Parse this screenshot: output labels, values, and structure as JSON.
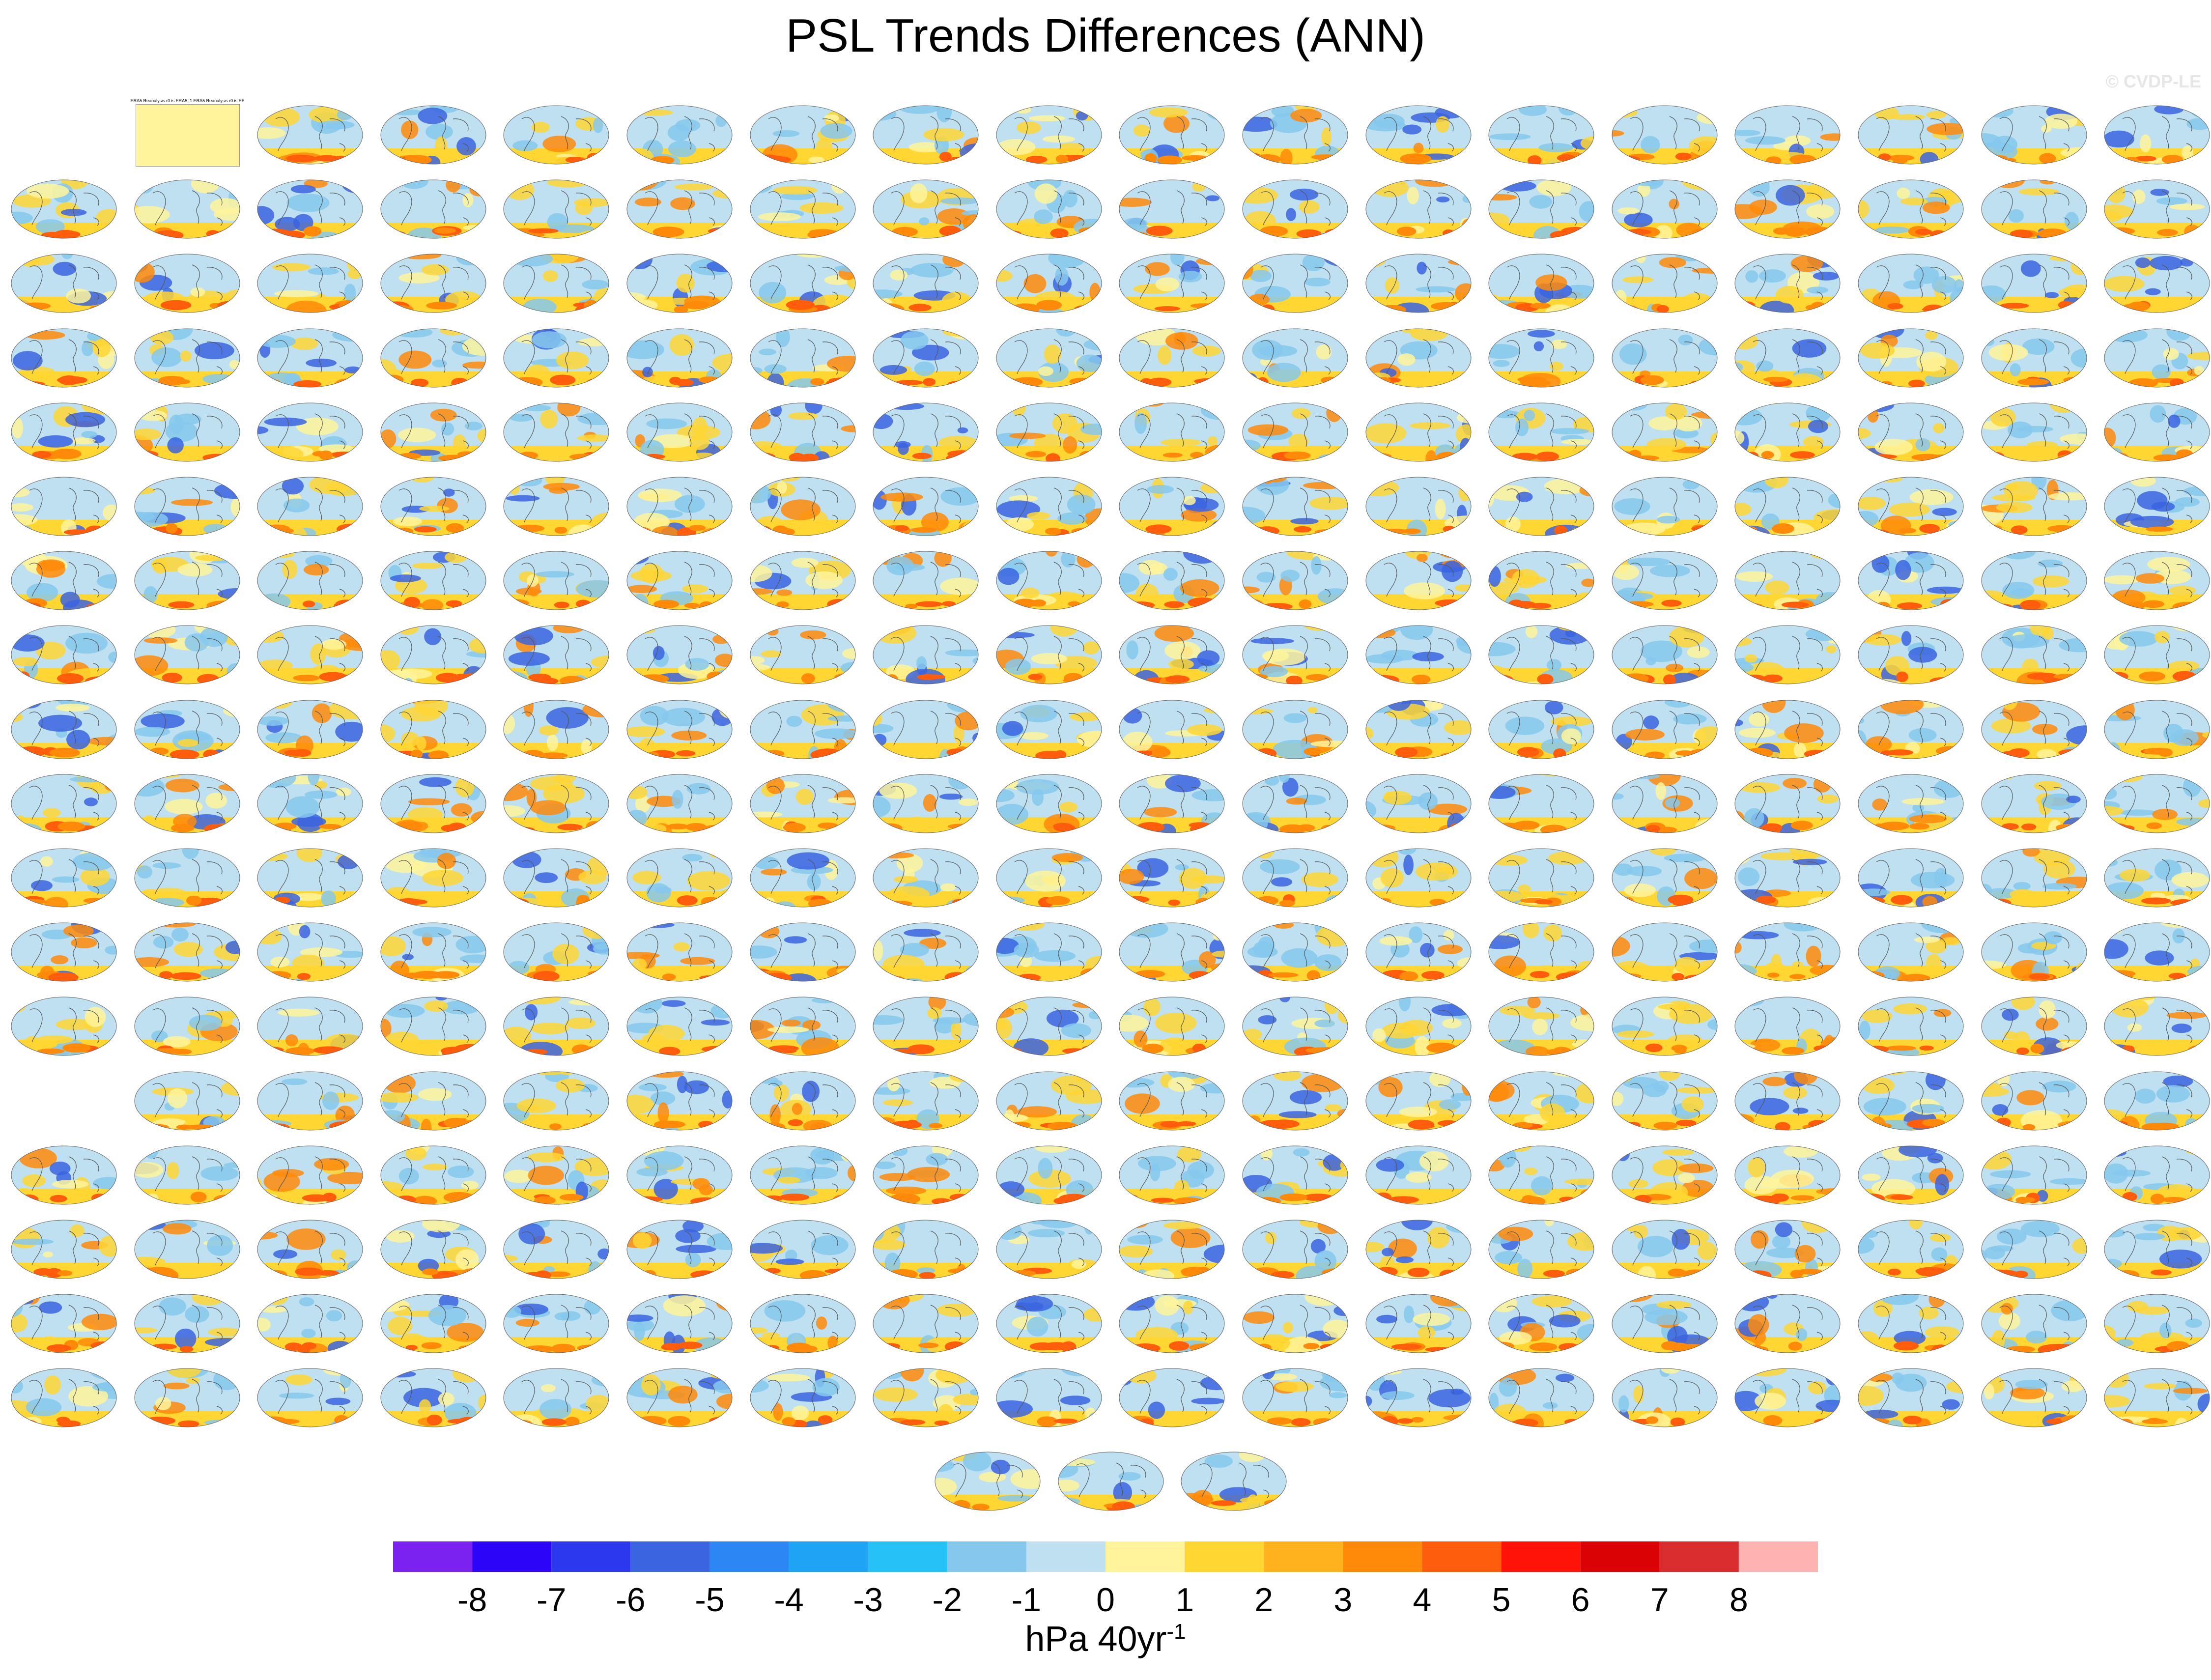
{
  "figure": {
    "title": "PSL Trends Differences (ANN)",
    "watermark": "© CVDP-LE",
    "units": "hPa 40yr",
    "units_exponent": "-1"
  },
  "chart_data": {
    "type": "heatmap",
    "description_note": "",
    "panel_grid": {
      "rows": 18,
      "columns": 18,
      "extra_bottom_row": 3
    },
    "missing_panels": [
      "row1-col1",
      "row14-col1"
    ],
    "first_panel_title": "ERA5 Reanalysis r0 is ERA5_1 ERA5 Reanalysis r0 is ERA5",
    "colorbar": {
      "ticks": [
        "-8",
        "-7",
        "-6",
        "-5",
        "-4",
        "-3",
        "-2",
        "-1",
        "0",
        "1",
        "2",
        "3",
        "4",
        "5",
        "6",
        "7",
        "8"
      ],
      "colors": [
        "#7c22f0",
        "#2c04f7",
        "#2b38ee",
        "#3b64e0",
        "#2c86f4",
        "#1fa4f5",
        "#26c2f7",
        "#86c8ed",
        "#bee0f0",
        "#fff49b",
        "#ffd632",
        "#ffb21d",
        "#ff8a09",
        "#ff5d0b",
        "#ff1208",
        "#db0206",
        "#d72d2f",
        "#ffb3b1"
      ]
    },
    "palette_roles": {
      "background": "#bee0f0",
      "neutral_positive": "#fff49b",
      "positive": "#ffd632",
      "strong_positive": "#ff8a09",
      "negative": "#86c8ed",
      "strong_negative": "#3b64e0"
    }
  }
}
